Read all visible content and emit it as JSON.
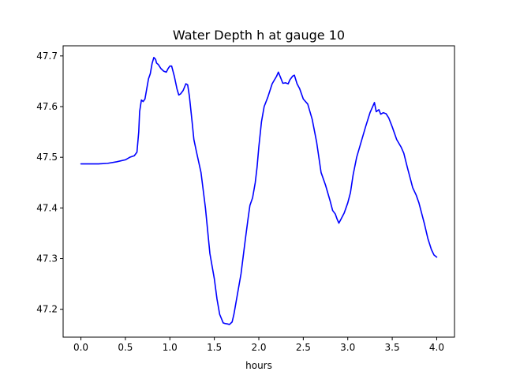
{
  "chart_data": {
    "type": "line",
    "title": "Water Depth h at gauge 10",
    "xlabel": "hours",
    "ylabel": "",
    "xlim": [
      -0.2,
      4.2
    ],
    "ylim": [
      47.145,
      47.72
    ],
    "xticks": [
      0.0,
      0.5,
      1.0,
      1.5,
      2.0,
      2.5,
      3.0,
      3.5,
      4.0
    ],
    "xtick_labels": [
      "0.0",
      "0.5",
      "1.0",
      "1.5",
      "2.0",
      "2.5",
      "3.0",
      "3.5",
      "4.0"
    ],
    "yticks": [
      47.2,
      47.3,
      47.4,
      47.5,
      47.6,
      47.7
    ],
    "ytick_labels": [
      "47.2",
      "47.3",
      "47.4",
      "47.5",
      "47.6",
      "47.7"
    ],
    "grid": false,
    "series": [
      {
        "color": "#0000ff",
        "x": [
          0.0,
          0.1,
          0.2,
          0.3,
          0.4,
          0.5,
          0.55,
          0.6,
          0.63,
          0.65,
          0.66,
          0.68,
          0.7,
          0.72,
          0.74,
          0.76,
          0.78,
          0.8,
          0.82,
          0.84,
          0.85,
          0.87,
          0.9,
          0.93,
          0.96,
          0.98,
          1.0,
          1.02,
          1.05,
          1.08,
          1.1,
          1.12,
          1.15,
          1.18,
          1.2,
          1.22,
          1.25,
          1.27,
          1.3,
          1.35,
          1.4,
          1.45,
          1.5,
          1.53,
          1.56,
          1.6,
          1.62,
          1.65,
          1.67,
          1.7,
          1.72,
          1.75,
          1.8,
          1.85,
          1.88,
          1.9,
          1.93,
          1.96,
          1.98,
          2.0,
          2.03,
          2.06,
          2.1,
          2.15,
          2.2,
          2.22,
          2.25,
          2.27,
          2.3,
          2.33,
          2.35,
          2.38,
          2.4,
          2.43,
          2.46,
          2.5,
          2.55,
          2.6,
          2.65,
          2.7,
          2.75,
          2.8,
          2.83,
          2.86,
          2.88,
          2.9,
          2.93,
          2.96,
          3.0,
          3.03,
          3.06,
          3.1,
          3.15,
          3.2,
          3.25,
          3.28,
          3.3,
          3.32,
          3.35,
          3.37,
          3.4,
          3.43,
          3.46,
          3.5,
          3.55,
          3.6,
          3.63,
          3.67,
          3.7,
          3.73,
          3.77,
          3.8,
          3.83,
          3.86,
          3.9,
          3.94,
          3.97,
          4.0
        ],
        "y": [
          47.487,
          47.487,
          47.487,
          47.488,
          47.491,
          47.495,
          47.5,
          47.503,
          47.51,
          47.55,
          47.59,
          47.613,
          47.61,
          47.615,
          47.635,
          47.655,
          47.665,
          47.685,
          47.697,
          47.693,
          47.686,
          47.683,
          47.675,
          47.67,
          47.668,
          47.675,
          47.68,
          47.68,
          47.66,
          47.635,
          47.623,
          47.625,
          47.632,
          47.645,
          47.643,
          47.62,
          47.57,
          47.535,
          47.51,
          47.47,
          47.4,
          47.31,
          47.26,
          47.22,
          47.19,
          47.173,
          47.172,
          47.171,
          47.17,
          47.175,
          47.19,
          47.22,
          47.27,
          47.34,
          47.38,
          47.405,
          47.42,
          47.45,
          47.48,
          47.52,
          47.57,
          47.6,
          47.618,
          47.645,
          47.66,
          47.668,
          47.655,
          47.646,
          47.647,
          47.645,
          47.653,
          47.66,
          47.662,
          47.645,
          47.635,
          47.615,
          47.605,
          47.575,
          47.53,
          47.47,
          47.445,
          47.415,
          47.395,
          47.388,
          47.378,
          47.37,
          47.38,
          47.39,
          47.41,
          47.43,
          47.465,
          47.5,
          47.53,
          47.56,
          47.588,
          47.6,
          47.608,
          47.59,
          47.594,
          47.585,
          47.588,
          47.586,
          47.578,
          47.56,
          47.535,
          47.52,
          47.508,
          47.48,
          47.46,
          47.44,
          47.425,
          47.41,
          47.39,
          47.37,
          47.34,
          47.318,
          47.307,
          47.303
        ]
      }
    ]
  }
}
